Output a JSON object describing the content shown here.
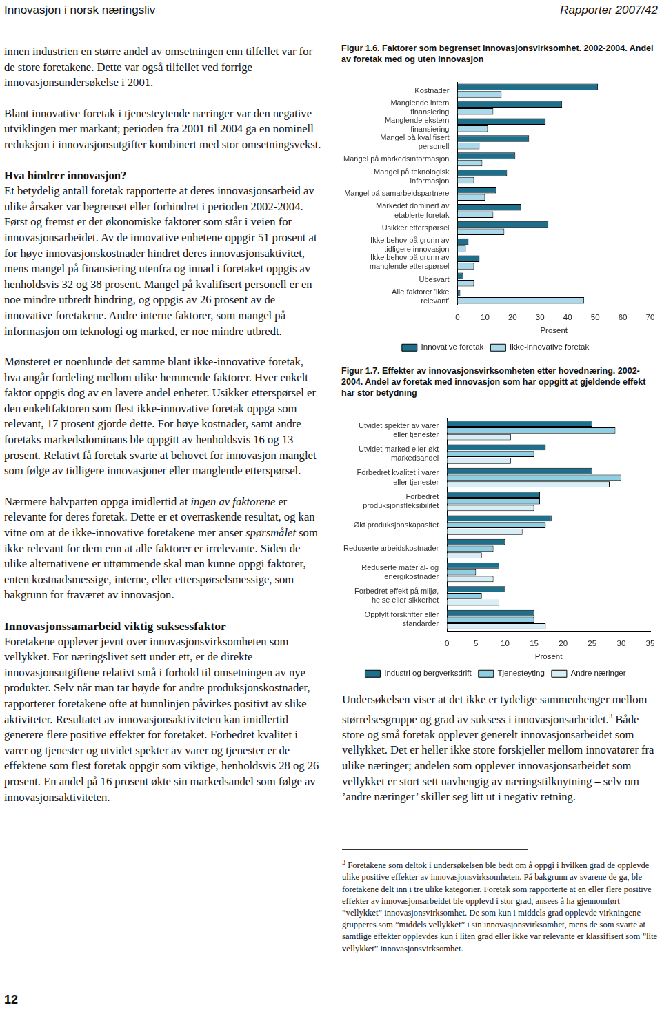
{
  "header": {
    "left": "Innovasjon i norsk næringsliv",
    "right": "Rapporter 2007/42"
  },
  "page_number": "12",
  "left_column": [
    {
      "kind": "p",
      "runs": [
        "innen industrien en større andel av omsetningen enn tilfellet var for de store foretakene. Dette var også tilfellet ved forrige innovasjonsundersøkelse i 2001."
      ]
    },
    {
      "kind": "p",
      "runs": [
        "Blant innovative foretak i tjenesteytende næringer var den negative utviklingen mer markant; perioden fra 2001 til 2004 ga en nominell reduksjon i innovasjonsutgifter kombinert med stor omsetningsvekst."
      ]
    },
    {
      "kind": "h3",
      "runs": [
        "Hva hindrer innovasjon?"
      ]
    },
    {
      "kind": "p",
      "runs": [
        "Et betydelig antall foretak rapporterte at deres innovasjonsarbeid av ulike årsaker var begrenset eller forhindret i perioden 2002-2004. Først og fremst er det økonomiske faktorer som står i veien for innovasjonsarbeidet. Av de innovative enhetene oppgir 51 prosent at for høye innovasjonskostnader hindret deres innovasjonsaktivitet, mens mangel på finansiering utenfra og innad i foretaket oppgis av henholdsvis 32 og 38 prosent. Mangel på kvalifisert personell er en noe mindre utbredt hindring, og oppgis av 26 prosent av de innovative foretakene. Andre interne faktorer, som mangel på informasjon om teknologi og marked, er noe mindre utbredt."
      ]
    },
    {
      "kind": "p",
      "runs": [
        "Mønsteret er noenlunde det samme blant ikke-innovative foretak, hva angår fordeling mellom ulike hemmende faktorer. Hver enkelt faktor oppgis dog av en lavere andel enheter. Usikker etterspørsel er den enkeltfaktoren som flest ikke-innovative foretak oppga som relevant, 17 prosent gjorde dette. For høye kostnader, samt andre foretaks markedsdominans ble oppgitt av henholdsvis 16 og 13 prosent. Relativt få foretak svarte at behovet for innovasjon manglet som følge av tidligere innovasjoner eller manglende etterspørsel."
      ]
    },
    {
      "kind": "p",
      "runs": [
        "Nærmere halvparten oppga imidlertid at ",
        {
          "italic": "ingen av faktorene"
        },
        " er relevante for deres foretak. Dette er et overraskende resultat, og kan vitne om at de ikke-innovative foretakene mer anser ",
        {
          "italic": "spørsmålet"
        },
        " som ikke relevant for dem enn at alle faktorer er irrelevante. Siden de ulike alternativene er uttømmende skal man kunne oppgi faktorer, enten kostnadsmessige, interne, eller etterspørselsmessige, som bakgrunn for fraværet av innovasjon."
      ]
    },
    {
      "kind": "h2",
      "runs": [
        "Innovasjonssamarbeid viktig suksessfaktor"
      ]
    },
    {
      "kind": "p",
      "runs": [
        "Foretakene opplever jevnt over innovasjonsvirksomheten som vellykket. For næringslivet sett under ett, er de direkte innovasjonsutgiftene relativt små i forhold til omsetningen av nye produkter. Selv når man tar høyde for andre produksjonskostnader, rapporterer foretakene ofte at bunnlinjen påvirkes positivt av slike aktiviteter. Resultatet av innovasjonsaktiviteten kan imidlertid generere flere positive effekter for foretaket. Forbedret kvalitet i varer og tjenester og utvidet spekter av varer og tjenester er de effektene som flest foretak oppgir som viktige, henholdsvis 28 og 26 prosent. En andel på 16 prosent økte sin markedsandel som følge av innovasjonsaktiviteten."
      ]
    }
  ],
  "chart_data": [
    {
      "type": "bar",
      "orientation": "horizontal",
      "title": "Figur 1.6. Faktorer som begrenset innovasjonsvirksomhet. 2002-2004. Andel av foretak med og uten innovasjon",
      "categories": [
        "Kostnader",
        "Manglende intern finansiering",
        "Manglende ekstern finansiering",
        "Mangel på kvalifisert personell",
        "Mangel på markedsinformasjon",
        "Mangel på teknologisk informasjon",
        "Mangel på samarbeidspartnere",
        "Markedet dominert av etablerte foretak",
        "Usikker etterspørsel",
        "Ikke behov på grunn av tidligere innovasjon",
        "Ikke behov på grunn av manglende etterspørsel",
        "Ubesvart",
        "Alle faktorer 'ikke relevant'"
      ],
      "series": [
        {
          "name": "Innovative foretak",
          "color": "#1d6f8c",
          "values": [
            51,
            38,
            32,
            26,
            21,
            18,
            14,
            23,
            33,
            4,
            8,
            2,
            1
          ]
        },
        {
          "name": "Ikke-innovative foretak",
          "color": "#a9d9ea",
          "values": [
            16,
            13,
            11,
            8,
            9,
            6,
            10,
            13,
            17,
            3,
            6,
            6,
            46
          ]
        }
      ],
      "x_label": "Prosent",
      "xlim": [
        0,
        70
      ],
      "xticks": [
        0,
        10,
        20,
        30,
        40,
        50,
        60,
        70
      ],
      "grid": false,
      "legend": "bottom"
    },
    {
      "type": "bar",
      "orientation": "horizontal",
      "title": "Figur 1.7. Effekter av innovasjonsvirksomheten etter hovednæring. 2002-2004. Andel av foretak med innovasjon som har oppgitt at gjeldende effekt har stor betydning",
      "categories": [
        "Utvidet spekter av varer eller tjenester",
        "Utvidet marked eller økt markedsandel",
        "Forbedret kvalitet i varer eller tjenester",
        "Forbedret produksjonsfleksibilitet",
        "Økt produksjonskapasitet",
        "Reduserte arbeidskostnader",
        "Reduserte material- og energikostnader",
        "Forbedret effekt på miljø, helse eller sikkerhet",
        "Oppfylt forskrifter eller standarder"
      ],
      "series": [
        {
          "name": "Industri og bergverksdrift",
          "color": "#1d6f8c",
          "values": [
            25,
            17,
            25,
            16,
            18,
            10,
            9,
            10,
            15
          ]
        },
        {
          "name": "Tjenesteyting",
          "color": "#8fcfe4",
          "values": [
            29,
            15,
            30,
            16,
            17,
            8,
            5,
            6,
            15
          ]
        },
        {
          "name": "Andre næringer",
          "color": "#d8eef6",
          "values": [
            11,
            11,
            28,
            15,
            13,
            6,
            8,
            9,
            17
          ]
        }
      ],
      "x_label": "Prosent",
      "xlim": [
        0,
        35
      ],
      "xticks": [
        0,
        5,
        10,
        15,
        20,
        25,
        30,
        35
      ],
      "grid": false,
      "legend": "bottom"
    }
  ],
  "right_column": [
    {
      "kind": "p",
      "runs": [
        "Undersøkelsen viser at det ikke er tydelige sammenhenger mellom størrelsesgruppe og grad av suksess i innovasjonsarbeidet.",
        {
          "sup": "3"
        },
        " Både store og små foretak opplever generelt innovasjonsarbeidet som vellykket. Det er heller ikke store forskjeller mellom innovatører fra ulike næringer; andelen som opplever innovasjonsarbeidet som vellykket er stort sett uavhengig av næringstilknytning – selv om ’andre næringer’ skiller seg litt ut i negativ retning."
      ]
    }
  ],
  "footnote": {
    "mark": "3",
    "text": "Foretakene som deltok i undersøkelsen ble bedt om å oppgi i hvilken grad de opplevde ulike positive effekter av innovasjonsvirksomheten. På bakgrunn av svarene de ga, ble foretakene delt inn i tre ulike kategorier. Foretak som rapporterte at en eller flere positive effekter av innovasjonsarbeidet ble opplevd i stor grad, ansees å ha gjennomført ”vellykket” innovasjonsvirksomhet. De som kun i middels grad opplevde virkningene grupperes som ”middels vellykket” i sin innovasjonsvirksomhet, mens de som svarte at samtlige effekter opplevdes kun i liten grad eller ikke var relevante er klassifisert som ”lite vellykket” innovasjonsvirksomhet."
  }
}
